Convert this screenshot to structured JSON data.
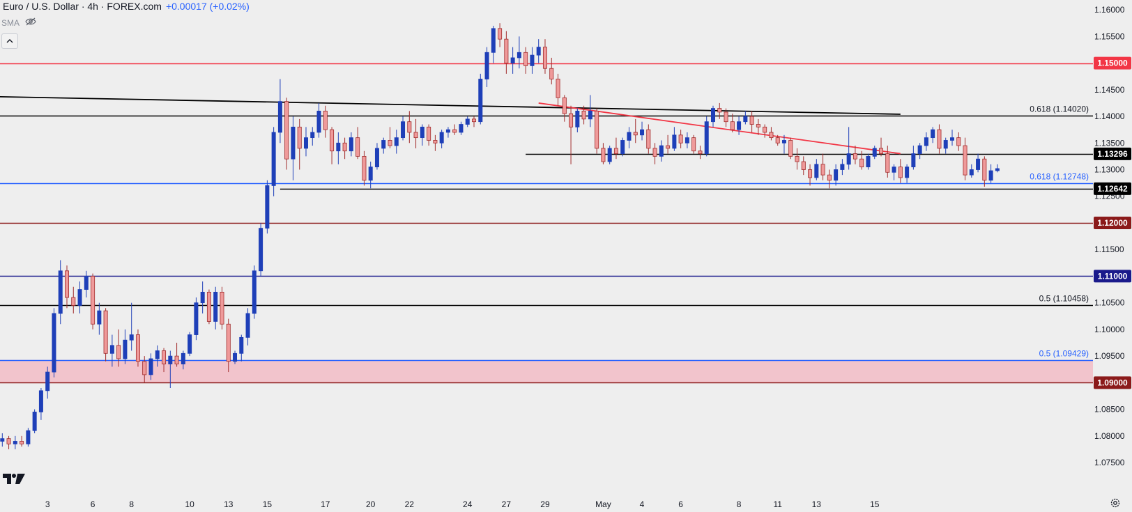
{
  "header": {
    "symbol": "Euro / U.S. Dollar · 4h · FOREX.com",
    "change": "+0.00017 (+0.02%)",
    "indicator": "SMA"
  },
  "chart_data": {
    "type": "candlestick",
    "title": "Euro / U.S. Dollar · 4h · FOREX.com",
    "ylim": [
      1.072,
      1.1608
    ],
    "price_ticks": [
      "1.16000",
      "1.15500",
      "1.15000",
      "1.14500",
      "1.14000",
      "1.13500",
      "1.13000",
      "1.12500",
      "1.12000",
      "1.11500",
      "1.11000",
      "1.10500",
      "1.10000",
      "1.09500",
      "1.09000",
      "1.08500",
      "1.08000",
      "1.07500"
    ],
    "time_ticks": [
      {
        "label": "3",
        "slot": 7
      },
      {
        "label": "6",
        "slot": 14
      },
      {
        "label": "8",
        "slot": 20
      },
      {
        "label": "10",
        "slot": 29
      },
      {
        "label": "13",
        "slot": 35
      },
      {
        "label": "15",
        "slot": 41
      },
      {
        "label": "17",
        "slot": 50
      },
      {
        "label": "20",
        "slot": 57
      },
      {
        "label": "22",
        "slot": 63
      },
      {
        "label": "24",
        "slot": 72
      },
      {
        "label": "27",
        "slot": 78
      },
      {
        "label": "29",
        "slot": 84
      },
      {
        "label": "May",
        "slot": 93
      },
      {
        "label": "4",
        "slot": 99
      },
      {
        "label": "6",
        "slot": 105
      },
      {
        "label": "8",
        "slot": 114
      },
      {
        "label": "11",
        "slot": 120
      },
      {
        "label": "13",
        "slot": 126
      },
      {
        "label": "15",
        "slot": 135
      }
    ],
    "horizontal_levels": [
      {
        "price": 1.15,
        "color": "#f23645",
        "tag": "1.15000",
        "tag_bg": "#f23645"
      },
      {
        "price": 1.1402,
        "color": "#000000",
        "label": "0.618 (1.14020)",
        "label_color": "#131722"
      },
      {
        "price": 1.13296,
        "color": "#000000",
        "tag": "1.13296",
        "tag_bg": "#000000",
        "from_slot": 81
      },
      {
        "price": 1.12748,
        "color": "#2962ff",
        "label": "0.618 (1.12748)",
        "label_color": "#2962ff"
      },
      {
        "price": 1.12642,
        "color": "#000000",
        "tag": "1.12642",
        "tag_bg": "#000000",
        "from_slot": 43
      },
      {
        "price": 1.12,
        "color": "#8b1a1a",
        "tag": "1.12000",
        "tag_bg": "#8b1a1a"
      },
      {
        "price": 1.11,
        "color": "#1a1a8b",
        "tag": "1.11000",
        "tag_bg": "#1a1a8b"
      },
      {
        "price": 1.10458,
        "color": "#000000",
        "label": "0.5 (1.10458)",
        "label_color": "#131722"
      },
      {
        "price": 1.09429,
        "color": "#2962ff",
        "label": "0.5 (1.09429)",
        "label_color": "#2962ff"
      },
      {
        "price": 1.09,
        "color": "#8b1a1a",
        "tag": "1.09000",
        "tag_bg": "#8b1a1a"
      }
    ],
    "zone": {
      "top": 1.09429,
      "bottom": 1.09,
      "color": "#f2c4cc"
    },
    "trendlines": [
      {
        "from": [
          -1,
          1.1437
        ],
        "to": [
          139,
          1.1404
        ],
        "color": "#000000"
      },
      {
        "from": [
          83,
          1.1425
        ],
        "to": [
          139,
          1.133
        ],
        "color": "#f23645"
      }
    ],
    "colors": {
      "up": "#1e3fb8",
      "down": "#ef9a9a",
      "down_border": "#a12b2b",
      "wick": "#303030",
      "background": "#eeeeee",
      "grid_text": "#131722"
    },
    "candles": [
      [
        1.079,
        1.0805,
        1.078,
        1.0795
      ],
      [
        1.0795,
        1.08,
        1.0775,
        1.0785
      ],
      [
        1.0785,
        1.08,
        1.0775,
        1.079
      ],
      [
        1.079,
        1.08,
        1.078,
        1.0785
      ],
      [
        1.0785,
        1.0815,
        1.078,
        1.081
      ],
      [
        1.081,
        1.085,
        1.0805,
        1.0845
      ],
      [
        1.0845,
        1.089,
        1.083,
        1.0885
      ],
      [
        1.0885,
        1.093,
        1.087,
        1.092
      ],
      [
        1.092,
        1.104,
        1.091,
        1.103
      ],
      [
        1.103,
        1.113,
        1.101,
        1.111
      ],
      [
        1.111,
        1.112,
        1.104,
        1.106
      ],
      [
        1.106,
        1.108,
        1.103,
        1.1045
      ],
      [
        1.1045,
        1.109,
        1.103,
        1.1075
      ],
      [
        1.1075,
        1.111,
        1.106,
        1.11
      ],
      [
        1.11,
        1.1105,
        1.1,
        1.101
      ],
      [
        1.101,
        1.105,
        1.099,
        1.1035
      ],
      [
        1.1035,
        1.104,
        1.094,
        1.0955
      ],
      [
        1.0955,
        1.099,
        1.093,
        1.097
      ],
      [
        1.097,
        1.1,
        1.093,
        1.0945
      ],
      [
        1.0945,
        1.1,
        1.0935,
        1.098
      ],
      [
        1.098,
        1.105,
        1.096,
        1.099
      ],
      [
        1.099,
        1.1,
        1.093,
        1.094
      ],
      [
        1.094,
        1.095,
        1.09,
        1.0915
      ],
      [
        1.0915,
        1.0955,
        1.0905,
        1.0945
      ],
      [
        1.0945,
        1.097,
        1.093,
        1.096
      ],
      [
        1.096,
        1.0965,
        1.092,
        1.0935
      ],
      [
        1.0935,
        1.096,
        1.089,
        1.095
      ],
      [
        1.095,
        1.0975,
        1.093,
        1.0935
      ],
      [
        1.0935,
        1.096,
        1.0925,
        1.0955
      ],
      [
        1.0955,
        1.0995,
        1.095,
        1.099
      ],
      [
        1.099,
        1.106,
        1.098,
        1.105
      ],
      [
        1.105,
        1.109,
        1.103,
        1.107
      ],
      [
        1.107,
        1.1075,
        1.101,
        1.1015
      ],
      [
        1.1015,
        1.108,
        1.1,
        1.107
      ],
      [
        1.107,
        1.108,
        1.1,
        1.101
      ],
      [
        1.101,
        1.102,
        1.092,
        1.094
      ],
      [
        1.094,
        1.096,
        1.0935,
        1.0955
      ],
      [
        1.0955,
        1.099,
        1.094,
        1.0985
      ],
      [
        1.0985,
        1.104,
        1.097,
        1.103
      ],
      [
        1.103,
        1.112,
        1.102,
        1.111
      ],
      [
        1.111,
        1.12,
        1.11,
        1.119
      ],
      [
        1.119,
        1.128,
        1.118,
        1.127
      ],
      [
        1.127,
        1.138,
        1.125,
        1.137
      ],
      [
        1.137,
        1.147,
        1.135,
        1.1428
      ],
      [
        1.1428,
        1.1435,
        1.13,
        1.132
      ],
      [
        1.132,
        1.14,
        1.128,
        1.138
      ],
      [
        1.138,
        1.1395,
        1.13,
        1.134
      ],
      [
        1.134,
        1.138,
        1.1325,
        1.136
      ],
      [
        1.136,
        1.138,
        1.1345,
        1.137
      ],
      [
        1.137,
        1.1425,
        1.136,
        1.141
      ],
      [
        1.141,
        1.142,
        1.136,
        1.1375
      ],
      [
        1.1375,
        1.138,
        1.131,
        1.1335
      ],
      [
        1.1335,
        1.137,
        1.131,
        1.135
      ],
      [
        1.135,
        1.136,
        1.132,
        1.1335
      ],
      [
        1.1335,
        1.137,
        1.1325,
        1.136
      ],
      [
        1.136,
        1.138,
        1.132,
        1.1325
      ],
      [
        1.1325,
        1.1335,
        1.127,
        1.128
      ],
      [
        1.128,
        1.1315,
        1.1265,
        1.1305
      ],
      [
        1.1305,
        1.135,
        1.13,
        1.134
      ],
      [
        1.134,
        1.136,
        1.133,
        1.1355
      ],
      [
        1.1355,
        1.138,
        1.134,
        1.1345
      ],
      [
        1.1345,
        1.1375,
        1.133,
        1.136
      ],
      [
        1.136,
        1.14,
        1.1355,
        1.139
      ],
      [
        1.139,
        1.141,
        1.135,
        1.137
      ],
      [
        1.137,
        1.1395,
        1.134,
        1.136
      ],
      [
        1.136,
        1.1385,
        1.1345,
        1.138
      ],
      [
        1.138,
        1.1385,
        1.1345,
        1.1355
      ],
      [
        1.1355,
        1.1365,
        1.1335,
        1.135
      ],
      [
        1.135,
        1.1375,
        1.134,
        1.137
      ],
      [
        1.137,
        1.138,
        1.136,
        1.1375
      ],
      [
        1.1375,
        1.1385,
        1.1365,
        1.137
      ],
      [
        1.137,
        1.139,
        1.1365,
        1.1385
      ],
      [
        1.1385,
        1.14,
        1.138,
        1.1395
      ],
      [
        1.1395,
        1.14,
        1.138,
        1.139
      ],
      [
        1.139,
        1.148,
        1.1385,
        1.147
      ],
      [
        1.147,
        1.153,
        1.1455,
        1.152
      ],
      [
        1.152,
        1.157,
        1.15,
        1.1565
      ],
      [
        1.1565,
        1.1575,
        1.153,
        1.1545
      ],
      [
        1.1545,
        1.156,
        1.148,
        1.15
      ],
      [
        1.15,
        1.153,
        1.148,
        1.151
      ],
      [
        1.151,
        1.155,
        1.149,
        1.152
      ],
      [
        1.152,
        1.153,
        1.148,
        1.1495
      ],
      [
        1.1495,
        1.153,
        1.148,
        1.1515
      ],
      [
        1.1515,
        1.1545,
        1.15,
        1.153
      ],
      [
        1.153,
        1.1545,
        1.148,
        1.149
      ],
      [
        1.149,
        1.151,
        1.146,
        1.147
      ],
      [
        1.147,
        1.148,
        1.142,
        1.1435
      ],
      [
        1.1435,
        1.144,
        1.139,
        1.1405
      ],
      [
        1.1405,
        1.142,
        1.131,
        1.138
      ],
      [
        1.138,
        1.1415,
        1.137,
        1.141
      ],
      [
        1.141,
        1.142,
        1.1385,
        1.1395
      ],
      [
        1.1395,
        1.144,
        1.138,
        1.141
      ],
      [
        1.141,
        1.1415,
        1.133,
        1.134
      ],
      [
        1.134,
        1.135,
        1.131,
        1.1315
      ],
      [
        1.1315,
        1.1345,
        1.131,
        1.134
      ],
      [
        1.134,
        1.136,
        1.132,
        1.133
      ],
      [
        1.133,
        1.136,
        1.1325,
        1.1355
      ],
      [
        1.1355,
        1.138,
        1.134,
        1.137
      ],
      [
        1.137,
        1.1395,
        1.135,
        1.1365
      ],
      [
        1.1365,
        1.139,
        1.1355,
        1.1375
      ],
      [
        1.1375,
        1.1385,
        1.133,
        1.134
      ],
      [
        1.134,
        1.135,
        1.131,
        1.1325
      ],
      [
        1.1325,
        1.1355,
        1.1315,
        1.1345
      ],
      [
        1.1345,
        1.1365,
        1.133,
        1.134
      ],
      [
        1.134,
        1.138,
        1.1335,
        1.1365
      ],
      [
        1.1365,
        1.1375,
        1.134,
        1.135
      ],
      [
        1.135,
        1.137,
        1.134,
        1.136
      ],
      [
        1.136,
        1.1365,
        1.133,
        1.1335
      ],
      [
        1.1335,
        1.1345,
        1.132,
        1.133
      ],
      [
        1.133,
        1.14,
        1.1325,
        1.139
      ],
      [
        1.139,
        1.142,
        1.138,
        1.1415
      ],
      [
        1.1415,
        1.1425,
        1.1395,
        1.1408
      ],
      [
        1.1408,
        1.1415,
        1.138,
        1.139
      ],
      [
        1.139,
        1.1405,
        1.137,
        1.1375
      ],
      [
        1.1375,
        1.14,
        1.1365,
        1.139
      ],
      [
        1.139,
        1.141,
        1.1385,
        1.14
      ],
      [
        1.14,
        1.141,
        1.137,
        1.1385
      ],
      [
        1.1385,
        1.1395,
        1.1365,
        1.138
      ],
      [
        1.138,
        1.1385,
        1.136,
        1.137
      ],
      [
        1.137,
        1.138,
        1.1355,
        1.136
      ],
      [
        1.136,
        1.1365,
        1.1345,
        1.135
      ],
      [
        1.135,
        1.1365,
        1.133,
        1.1355
      ],
      [
        1.1355,
        1.136,
        1.132,
        1.1325
      ],
      [
        1.1325,
        1.134,
        1.13,
        1.1315
      ],
      [
        1.1315,
        1.1325,
        1.129,
        1.13
      ],
      [
        1.13,
        1.131,
        1.127,
        1.1285
      ],
      [
        1.1285,
        1.132,
        1.128,
        1.131
      ],
      [
        1.131,
        1.133,
        1.128,
        1.129
      ],
      [
        1.129,
        1.13,
        1.1265,
        1.128
      ],
      [
        1.128,
        1.131,
        1.127,
        1.13
      ],
      [
        1.13,
        1.132,
        1.129,
        1.131
      ],
      [
        1.131,
        1.138,
        1.13,
        1.133
      ],
      [
        1.133,
        1.1345,
        1.131,
        1.132
      ],
      [
        1.132,
        1.1335,
        1.13,
        1.1305
      ],
      [
        1.1305,
        1.133,
        1.13,
        1.1325
      ],
      [
        1.1325,
        1.1345,
        1.132,
        1.134
      ],
      [
        1.134,
        1.136,
        1.1325,
        1.133
      ],
      [
        1.133,
        1.1345,
        1.1285,
        1.1295
      ],
      [
        1.1295,
        1.131,
        1.128,
        1.1305
      ],
      [
        1.1305,
        1.132,
        1.1275,
        1.1285
      ],
      [
        1.1285,
        1.131,
        1.1275,
        1.1305
      ],
      [
        1.1305,
        1.1345,
        1.13,
        1.133
      ],
      [
        1.133,
        1.135,
        1.132,
        1.1345
      ],
      [
        1.1345,
        1.137,
        1.1335,
        1.136
      ],
      [
        1.136,
        1.138,
        1.135,
        1.1375
      ],
      [
        1.1375,
        1.1385,
        1.133,
        1.134
      ],
      [
        1.134,
        1.136,
        1.133,
        1.1355
      ],
      [
        1.1355,
        1.1375,
        1.1345,
        1.136
      ],
      [
        1.136,
        1.137,
        1.1335,
        1.1345
      ],
      [
        1.1345,
        1.136,
        1.128,
        1.129
      ],
      [
        1.129,
        1.131,
        1.1285,
        1.13
      ],
      [
        1.13,
        1.133,
        1.1295,
        1.132
      ],
      [
        1.132,
        1.1325,
        1.1268,
        1.128
      ],
      [
        1.128,
        1.131,
        1.1275,
        1.1298
      ],
      [
        1.1298,
        1.131,
        1.1295,
        1.1302
      ]
    ]
  }
}
